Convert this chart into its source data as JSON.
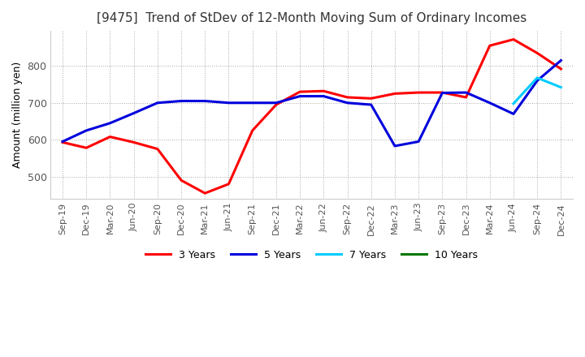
{
  "title": "[9475]  Trend of StDev of 12-Month Moving Sum of Ordinary Incomes",
  "ylabel": "Amount (million yen)",
  "background_color": "#ffffff",
  "grid_color": "#aaaaaa",
  "ylim": [
    440,
    895
  ],
  "yticks": [
    500,
    600,
    700,
    800
  ],
  "x_labels": [
    "Sep-19",
    "Dec-19",
    "Mar-20",
    "Jun-20",
    "Sep-20",
    "Dec-20",
    "Mar-21",
    "Jun-21",
    "Sep-21",
    "Dec-21",
    "Mar-22",
    "Jun-22",
    "Sep-22",
    "Dec-22",
    "Mar-23",
    "Jun-23",
    "Sep-23",
    "Dec-23",
    "Mar-24",
    "Jun-24",
    "Sep-24",
    "Dec-24"
  ],
  "series": {
    "3 Years": {
      "color": "#ff0000",
      "data": [
        593,
        578,
        608,
        593,
        575,
        490,
        455,
        480,
        625,
        695,
        730,
        732,
        715,
        712,
        725,
        728,
        728,
        715,
        855,
        872,
        835,
        792
      ]
    },
    "5 Years": {
      "color": "#0000dd",
      "data": [
        595,
        625,
        645,
        672,
        700,
        705,
        705,
        700,
        700,
        700,
        718,
        718,
        700,
        695,
        583,
        595,
        727,
        728,
        700,
        670,
        760,
        815
      ]
    },
    "7 Years": {
      "color": "#00ccff",
      "data": [
        null,
        null,
        null,
        null,
        null,
        null,
        null,
        null,
        null,
        null,
        null,
        null,
        null,
        null,
        null,
        null,
        null,
        null,
        null,
        698,
        768,
        742
      ]
    },
    "10 Years": {
      "color": "#007700",
      "data": [
        null,
        null,
        null,
        null,
        null,
        null,
        null,
        null,
        null,
        null,
        null,
        null,
        null,
        null,
        null,
        null,
        null,
        null,
        null,
        null,
        null,
        null
      ]
    }
  },
  "legend_order": [
    "3 Years",
    "5 Years",
    "7 Years",
    "10 Years"
  ]
}
